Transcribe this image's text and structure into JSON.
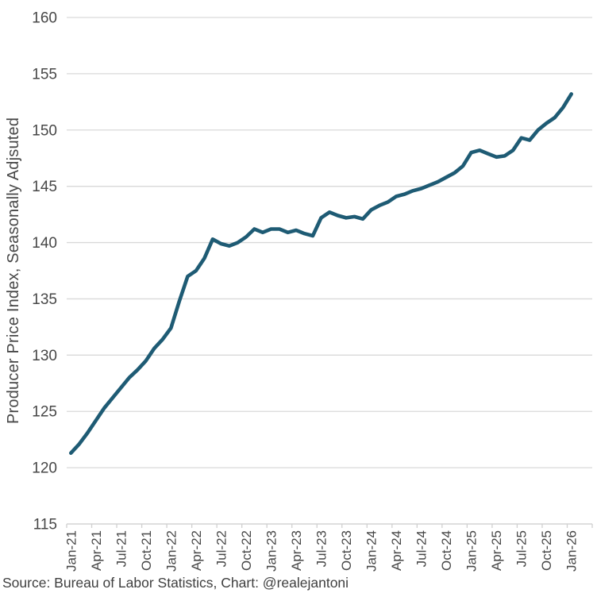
{
  "texts": {
    "y_axis_title": "Producer Price Index, Seasonally Adjsuted",
    "source_line": "Source: Bureau of Labor Statistics, Chart: @realejantoni"
  },
  "colors": {
    "line": "#1E5B74",
    "gridline": "#D9D9D9",
    "axis_line": "#D0D0D0",
    "tick_text": "#474747",
    "background": "#FFFFFF"
  },
  "chart_data": {
    "type": "line",
    "title": "",
    "xlabel": "",
    "ylabel": "Producer Price Index, Seasonally Adjsuted",
    "ylim": [
      115,
      160
    ],
    "y_ticks": [
      115,
      120,
      125,
      130,
      135,
      140,
      145,
      150,
      155,
      160
    ],
    "grid": "horizontal",
    "legend_position": "none",
    "source": "Source: Bureau of Labor Statistics, Chart: @realejantoni",
    "x_tick_labels": [
      "Jan-21",
      "Apr-21",
      "Jul-21",
      "Oct-21",
      "Jan-22",
      "Apr-22",
      "Jul-22",
      "Oct-22",
      "Jan-23",
      "Apr-23",
      "Jul-23",
      "Oct-23",
      "Jan-24",
      "Apr-24",
      "Jul-24",
      "Oct-24",
      "Jan-25",
      "Apr-25",
      "Jul-25",
      "Oct-25",
      "Jan-26"
    ],
    "x": [
      "Jan-21",
      "Feb-21",
      "Mar-21",
      "Apr-21",
      "May-21",
      "Jun-21",
      "Jul-21",
      "Aug-21",
      "Sep-21",
      "Oct-21",
      "Nov-21",
      "Dec-21",
      "Jan-22",
      "Feb-22",
      "Mar-22",
      "Apr-22",
      "May-22",
      "Jun-22",
      "Jul-22",
      "Aug-22",
      "Sep-22",
      "Oct-22",
      "Nov-22",
      "Dec-22",
      "Jan-23",
      "Feb-23",
      "Mar-23",
      "Apr-23",
      "May-23",
      "Jun-23",
      "Jul-23",
      "Aug-23",
      "Sep-23",
      "Oct-23",
      "Nov-23",
      "Dec-23",
      "Jan-24",
      "Feb-24",
      "Mar-24",
      "Apr-24",
      "May-24",
      "Jun-24",
      "Jul-24",
      "Aug-24",
      "Sep-24",
      "Oct-24",
      "Nov-24",
      "Dec-24",
      "Jan-25",
      "Feb-25",
      "Mar-25",
      "Apr-25",
      "May-25",
      "Jun-25",
      "Jul-25",
      "Aug-25",
      "Sep-25",
      "Oct-25",
      "Nov-25",
      "Dec-25",
      "Jan-26"
    ],
    "series": [
      {
        "name": "Producer Price Index, Seasonally Adjusted",
        "values": [
          121.3,
          122.1,
          123.1,
          124.2,
          125.3,
          126.2,
          127.1,
          128.0,
          128.7,
          129.5,
          130.6,
          131.4,
          132.4,
          134.8,
          137.0,
          137.5,
          138.6,
          140.3,
          139.9,
          139.7,
          140.0,
          140.5,
          141.2,
          140.9,
          141.2,
          141.2,
          140.9,
          141.1,
          140.8,
          140.6,
          142.2,
          142.7,
          142.4,
          142.2,
          142.3,
          142.1,
          142.9,
          143.3,
          143.6,
          144.1,
          144.3,
          144.6,
          144.8,
          145.1,
          145.4,
          145.8,
          146.2,
          146.8,
          148.0,
          148.2,
          147.9,
          147.6,
          147.7,
          148.2,
          149.3,
          149.1,
          150.0,
          150.6,
          151.1,
          152.0,
          153.2
        ]
      }
    ]
  }
}
